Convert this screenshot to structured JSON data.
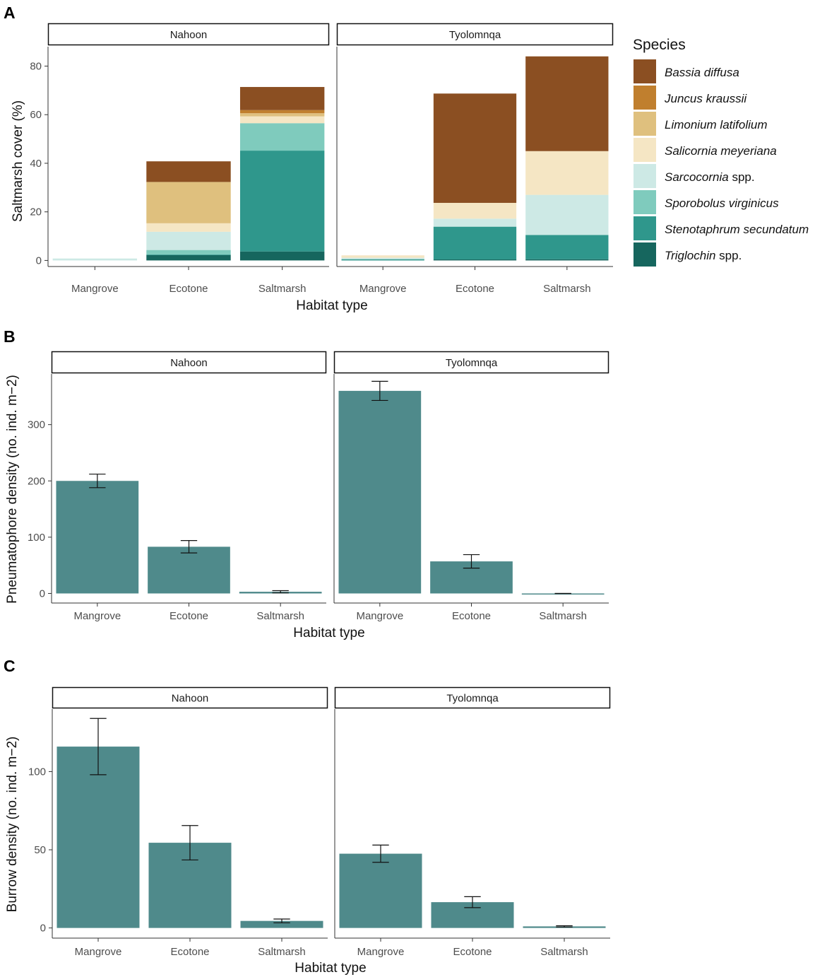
{
  "colors": {
    "bar": "#4f8a8b",
    "axis": "#333333",
    "species": [
      "#8b4f22",
      "#c07f2e",
      "#dfc07e",
      "#f5e6c4",
      "#cde9e5",
      "#7fcbbd",
      "#2f978c",
      "#16665e"
    ]
  },
  "panels": {
    "A": {
      "label": "A",
      "xlabel": "Habitat type",
      "ylabel": "Saltmarsh cover (%)",
      "yticks": [
        0,
        20,
        40,
        60,
        80
      ]
    },
    "B": {
      "label": "B",
      "xlabel": "Habitat type",
      "ylabel": "Pneumatophore density (no. ind. m−2)",
      "yticks": [
        0,
        100,
        200,
        300
      ]
    },
    "C": {
      "label": "C",
      "xlabel": "Habitat type",
      "ylabel": "Burrow density (no. ind. m−2)",
      "yticks": [
        0,
        50,
        100
      ]
    }
  },
  "legend": {
    "title": "Species",
    "items": [
      {
        "italic": "Bassia diffusa",
        "plain": ""
      },
      {
        "italic": "Juncus kraussii",
        "plain": ""
      },
      {
        "italic": "Limonium latifolium",
        "plain": ""
      },
      {
        "italic": "Salicornia meyeriana",
        "plain": ""
      },
      {
        "italic": "Sarcocornia",
        "plain": " spp."
      },
      {
        "italic": "Sporobolus virginicus",
        "plain": ""
      },
      {
        "italic": "Stenotaphrum secundatum",
        "plain": ""
      },
      {
        "italic": "Triglochin",
        "plain": " spp."
      }
    ]
  },
  "chart_data": [
    {
      "type": "bar",
      "stacked": true,
      "title": "A",
      "xlabel": "Habitat type",
      "ylabel": "Saltmarsh cover (%)",
      "ylim": [
        0,
        88
      ],
      "facets": [
        "Nahoon",
        "Tyolomnqa"
      ],
      "categories": [
        "Mangrove",
        "Ecotone",
        "Saltmarsh"
      ],
      "series_names": [
        "Bassia diffusa",
        "Juncus kraussii",
        "Limonium latifolium",
        "Salicornia meyeriana",
        "Sarcocornia spp.",
        "Sporobolus virginicus",
        "Stenotaphrum secundatum",
        "Triglochin spp."
      ],
      "values": {
        "Nahoon": [
          [
            0,
            0,
            0,
            0,
            0.8,
            0,
            0,
            0
          ],
          [
            8.5,
            0,
            17,
            3.5,
            7.5,
            1.8,
            0.3,
            2.2
          ],
          [
            9.5,
            1.3,
            1.3,
            2.8,
            0,
            11.3,
            41.5,
            3.7
          ]
        ],
        "Tyolomnqa": [
          [
            0,
            0,
            0,
            1,
            0.6,
            0,
            0.5,
            0
          ],
          [
            45,
            0,
            0,
            6.5,
            3.3,
            0,
            13.5,
            0.4
          ],
          [
            39,
            0,
            0,
            18,
            16.5,
            0,
            10,
            0.5
          ]
        ]
      }
    },
    {
      "type": "bar",
      "title": "B",
      "xlabel": "Habitat type",
      "ylabel": "Pneumatophore density (no. ind. m−2)",
      "ylim": [
        -17,
        390
      ],
      "facets": [
        "Nahoon",
        "Tyolomnqa"
      ],
      "categories": [
        "Mangrove",
        "Ecotone",
        "Saltmarsh"
      ],
      "values": {
        "Nahoon": [
          200,
          83,
          3
        ],
        "Tyolomnqa": [
          360,
          57,
          0
        ]
      },
      "errors": {
        "Nahoon": [
          12,
          11,
          2
        ],
        "Tyolomnqa": [
          17,
          12,
          0
        ]
      }
    },
    {
      "type": "bar",
      "title": "C",
      "xlabel": "Habitat type",
      "ylabel": "Burrow density (no. ind. m−2)",
      "ylim": [
        -6.5,
        140
      ],
      "facets": [
        "Nahoon",
        "Tyolomnqa"
      ],
      "categories": [
        "Mangrove",
        "Ecotone",
        "Saltmarsh"
      ],
      "values": {
        "Nahoon": [
          116,
          54.5,
          4.5
        ],
        "Tyolomnqa": [
          47.5,
          16.5,
          1
        ]
      },
      "errors": {
        "Nahoon": [
          18,
          11,
          1.2
        ],
        "Tyolomnqa": [
          5.5,
          3.5,
          0.4
        ]
      }
    }
  ]
}
